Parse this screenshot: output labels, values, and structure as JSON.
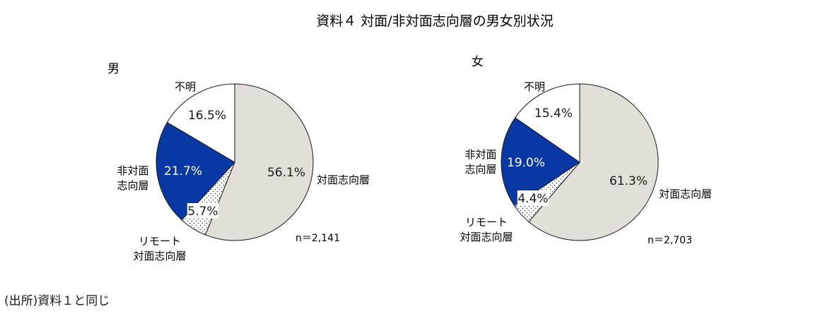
{
  "title": "資料４ 対面/非対面志向層の男女別状況",
  "source_note": "(出所)資料１と同じ",
  "chart_data": [
    {
      "type": "pie",
      "title": "男",
      "n_label": "n＝2,141",
      "slices": [
        {
          "name": "対面志向層",
          "label_lines": [
            "対面志向層"
          ],
          "value": 56.1,
          "value_label": "56.1%",
          "color": "#e2dfd8",
          "pattern": "none"
        },
        {
          "name": "リモート対面志向層",
          "label_lines": [
            "リモート",
            "対面志向層"
          ],
          "value": 5.7,
          "value_label": "5.7%",
          "color": "#ffffff",
          "pattern": "dots"
        },
        {
          "name": "非対面志向層",
          "label_lines": [
            "非対面",
            "志向層"
          ],
          "value": 21.7,
          "value_label": "21.7%",
          "color": "#0738a3",
          "pattern": "none"
        },
        {
          "name": "不明",
          "label_lines": [
            "不明"
          ],
          "value": 16.5,
          "value_label": "16.5%",
          "color": "#ffffff",
          "pattern": "none"
        }
      ]
    },
    {
      "type": "pie",
      "title": "女",
      "n_label": "n＝2,703",
      "slices": [
        {
          "name": "対面志向層",
          "label_lines": [
            "対面志向層"
          ],
          "value": 61.3,
          "value_label": "61.3%",
          "color": "#e2dfd8",
          "pattern": "none"
        },
        {
          "name": "リモート対面志向層",
          "label_lines": [
            "リモート",
            "対面志向層"
          ],
          "value": 4.4,
          "value_label": "4.4%",
          "color": "#ffffff",
          "pattern": "dots"
        },
        {
          "name": "非対面志向層",
          "label_lines": [
            "非対面",
            "志向層"
          ],
          "value": 19.0,
          "value_label": "19.0%",
          "color": "#0738a3",
          "pattern": "none"
        },
        {
          "name": "不明",
          "label_lines": [
            "不明"
          ],
          "value": 15.4,
          "value_label": "15.4%",
          "color": "#ffffff",
          "pattern": "none"
        }
      ]
    }
  ]
}
